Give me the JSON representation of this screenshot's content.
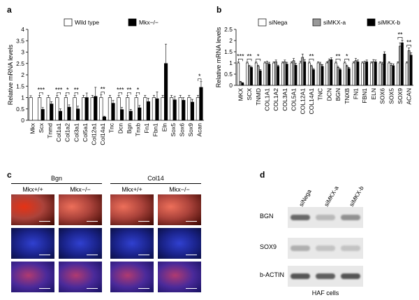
{
  "panels": {
    "a": {
      "label": "a"
    },
    "b": {
      "label": "b"
    },
    "c": {
      "label": "c"
    },
    "d": {
      "label": "d"
    }
  },
  "chart_data": [
    {
      "id": "a",
      "type": "bar",
      "ylabel": "Relative mRNA levels",
      "ylim": [
        0,
        4
      ],
      "yticks": [
        "0",
        "0.5",
        "1",
        "1.5",
        "2",
        "2.5",
        "3",
        "3.5",
        "4"
      ],
      "categories": [
        "Mkx",
        "Scx",
        "Tnmd",
        "Col1a1",
        "Col1a2",
        "Col3a1",
        "Col5a1",
        "Col12a1",
        "Col14a1",
        "Tnc",
        "Dcn",
        "Bgn",
        "Tnxb",
        "Fn1",
        "Fbn1",
        "Eln",
        "Sox5",
        "Sox6",
        "Sox9",
        "Acan"
      ],
      "series": [
        {
          "name": "Wild type",
          "color": "#ffffff",
          "values": [
            1,
            1,
            1,
            1,
            1,
            1,
            1,
            1,
            1,
            1,
            1,
            1,
            1,
            1,
            1,
            1,
            1,
            1,
            1,
            1
          ],
          "errors": [
            0.08,
            0.1,
            0.1,
            0.1,
            0.1,
            0.1,
            0.1,
            0.1,
            0.12,
            0.1,
            0.1,
            0.1,
            0.1,
            0.1,
            0.1,
            0.1,
            0.1,
            0.1,
            0.1,
            0.1
          ]
        },
        {
          "name": "Mkx−/−",
          "color": "#000000",
          "values": [
            0,
            0.48,
            0.72,
            0.4,
            0.58,
            0.5,
            1.0,
            1.05,
            0.15,
            0.75,
            0.47,
            0.4,
            0.55,
            0.82,
            0.95,
            2.5,
            0.9,
            0.88,
            0.8,
            1.45
          ],
          "errors": [
            0,
            0.08,
            0.1,
            0.1,
            0.1,
            0.12,
            0.2,
            0.4,
            0.03,
            0.12,
            0.1,
            0.08,
            0.1,
            0.15,
            0.3,
            0.85,
            0.15,
            0.12,
            0.12,
            0.25
          ]
        }
      ],
      "significance": [
        {
          "category": "Scx",
          "text": "***"
        },
        {
          "category": "Col1a1",
          "text": "***"
        },
        {
          "category": "Col1a2",
          "text": "*"
        },
        {
          "category": "Col3a1",
          "text": "**"
        },
        {
          "category": "Col14a1",
          "text": "**"
        },
        {
          "category": "Dcn",
          "text": "***"
        },
        {
          "category": "Bgn",
          "text": "**"
        },
        {
          "category": "Tnxb",
          "text": "*"
        },
        {
          "category": "Acan",
          "text": "*"
        }
      ],
      "legend_position": "top"
    },
    {
      "id": "b",
      "type": "bar",
      "ylabel": "Relative mRNA levels",
      "ylim": [
        0,
        2.5
      ],
      "yticks": [
        "0",
        "0.5",
        "1",
        "1.5",
        "2",
        "2.5"
      ],
      "categories": [
        "MKX",
        "SCX",
        "TNMD",
        "COL1A1",
        "COL1A2",
        "COL3A1",
        "COL5A1",
        "COL12A1",
        "COL14A1",
        "TNC",
        "DCN",
        "BGN",
        "TNXB",
        "FN1",
        "FBN1",
        "ELN",
        "SOX6",
        "SOX5",
        "SOX9",
        "ACAN"
      ],
      "series": [
        {
          "name": "siNega",
          "color": "#ffffff",
          "values": [
            1,
            1,
            1,
            1,
            1,
            1,
            1,
            1,
            1,
            1,
            1,
            1,
            1,
            1,
            1,
            1,
            1,
            1,
            1,
            1
          ],
          "errors": [
            0.05,
            0.05,
            0.05,
            0.05,
            0.05,
            0.05,
            0.05,
            0.08,
            0.05,
            0.05,
            0.05,
            0.05,
            0.05,
            0.05,
            0.05,
            0.05,
            0.05,
            0.05,
            0.05,
            0.05
          ]
        },
        {
          "name": "siMKX-a",
          "color": "#999999",
          "values": [
            0.15,
            0.85,
            0.85,
            1.0,
            1.05,
            1.05,
            1.1,
            1.25,
            0.85,
            0.95,
            1.1,
            0.8,
            0.85,
            1.1,
            1.0,
            1.05,
            0.95,
            0.9,
            1.75,
            1.55
          ],
          "errors": [
            0.03,
            0.05,
            0.05,
            0.08,
            0.08,
            0.08,
            0.1,
            0.15,
            0.05,
            0.08,
            0.08,
            0.05,
            0.05,
            0.1,
            0.08,
            0.1,
            0.08,
            0.08,
            0.15,
            0.12
          ]
        },
        {
          "name": "siMKX-b",
          "color": "#000000",
          "values": [
            0.1,
            0.8,
            0.65,
            0.95,
            0.85,
            0.95,
            0.9,
            1.05,
            0.7,
            0.85,
            1.15,
            0.7,
            0.75,
            1.05,
            1.05,
            1.05,
            1.4,
            0.88,
            1.9,
            1.35
          ],
          "errors": [
            0.02,
            0.05,
            0.05,
            0.08,
            0.05,
            0.08,
            0.08,
            0.1,
            0.05,
            0.08,
            0.08,
            0.05,
            0.05,
            0.08,
            0.08,
            0.08,
            0.1,
            0.08,
            0.12,
            0.1
          ]
        }
      ],
      "significance": [
        {
          "category": "MKX",
          "text": "***"
        },
        {
          "category": "SCX",
          "text": "**"
        },
        {
          "category": "TNMD",
          "text": "*"
        },
        {
          "category": "COL14A1",
          "text": "**"
        },
        {
          "category": "BGN",
          "text": "**"
        },
        {
          "category": "TNXB",
          "text": "*"
        },
        {
          "category": "SOX9",
          "text": "**"
        },
        {
          "category": "ACAN",
          "text": "**"
        }
      ],
      "legend_position": "top"
    }
  ],
  "panel_c": {
    "groups": [
      {
        "title": "Bgn",
        "columns": [
          "Mkx+/+",
          "Mkx−/−"
        ]
      },
      {
        "title": "Col14",
        "columns": [
          "Mkx+/+",
          "Mkx−/−"
        ]
      }
    ]
  },
  "panel_d": {
    "lanes": [
      "siNega",
      "siMKX-a",
      "siMKX-b"
    ],
    "rows": [
      "BGN",
      "SOX9",
      "b-ACTIN"
    ],
    "caption": "HAF cells"
  },
  "colors": {
    "stain_red": "#c8220e",
    "stain_blue": "#1e2aa8",
    "stain_merge": "#6a2a8a"
  }
}
